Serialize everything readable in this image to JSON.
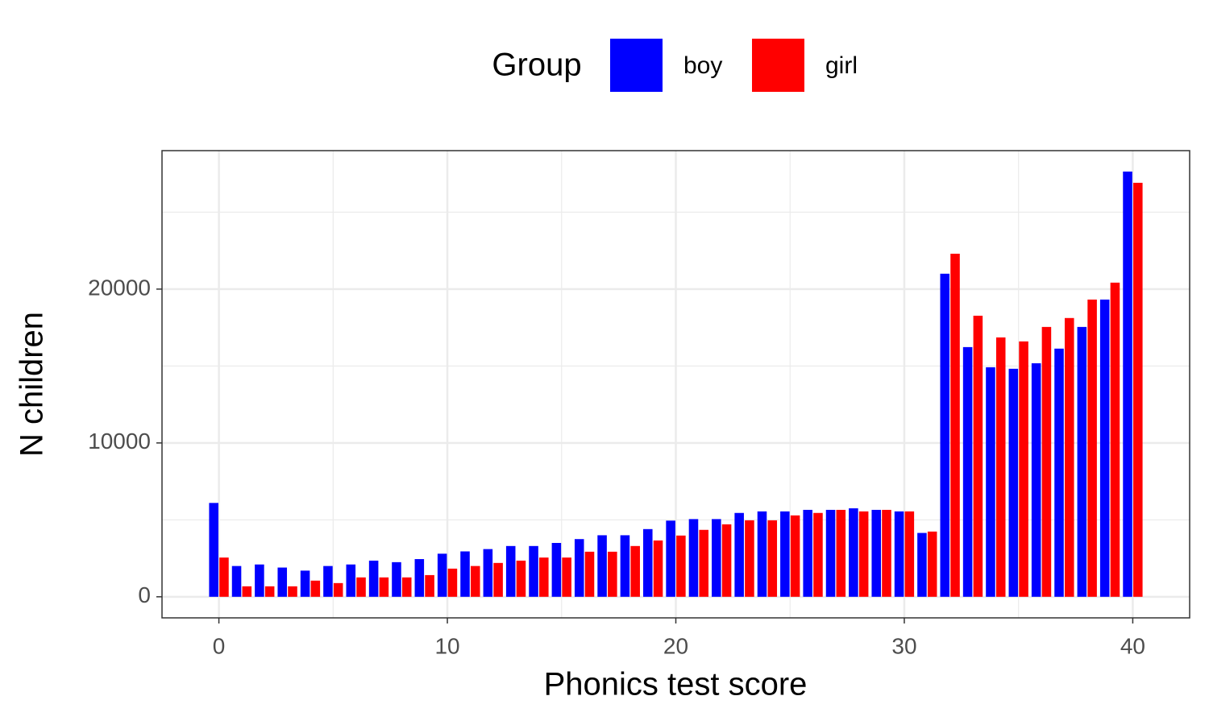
{
  "chart_data": {
    "type": "bar",
    "x_label": "Phonics test score",
    "y_label": "N children",
    "legend_title": "Group",
    "legend_position": "top",
    "x": [
      0,
      1,
      2,
      3,
      4,
      5,
      6,
      7,
      8,
      9,
      10,
      11,
      12,
      13,
      14,
      15,
      16,
      17,
      18,
      19,
      20,
      21,
      22,
      23,
      24,
      25,
      26,
      27,
      28,
      29,
      30,
      31,
      32,
      33,
      34,
      35,
      36,
      37,
      38,
      39,
      40
    ],
    "series": [
      {
        "name": "boy",
        "color": "#0000ff",
        "values": [
          6100,
          2000,
          2100,
          1900,
          1700,
          2000,
          2100,
          2350,
          2250,
          2450,
          2800,
          2950,
          3100,
          3300,
          3300,
          3500,
          3750,
          4000,
          4000,
          4400,
          4950,
          5050,
          5050,
          5450,
          5550,
          5550,
          5650,
          5650,
          5750,
          5650,
          5550,
          4150,
          21000,
          16230,
          14920,
          14820,
          15180,
          16130,
          17540,
          19320,
          27640
        ]
      },
      {
        "name": "girl",
        "color": "#ff0000",
        "values": [
          2550,
          680,
          680,
          680,
          1050,
          890,
          1260,
          1260,
          1260,
          1410,
          1830,
          2000,
          2200,
          2350,
          2550,
          2550,
          2930,
          2930,
          3300,
          3660,
          3980,
          4350,
          4710,
          4970,
          4970,
          5290,
          5450,
          5650,
          5550,
          5650,
          5550,
          4240,
          22300,
          18270,
          16860,
          16600,
          17540,
          18120,
          19320,
          20420,
          26910
        ]
      }
    ],
    "xlim": [
      -2.49,
      42.49
    ],
    "ylim": [
      -1370,
      29000
    ],
    "xticks": [
      0,
      10,
      20,
      30,
      40
    ],
    "yticks": [
      0,
      10000,
      20000
    ],
    "grid": true
  }
}
